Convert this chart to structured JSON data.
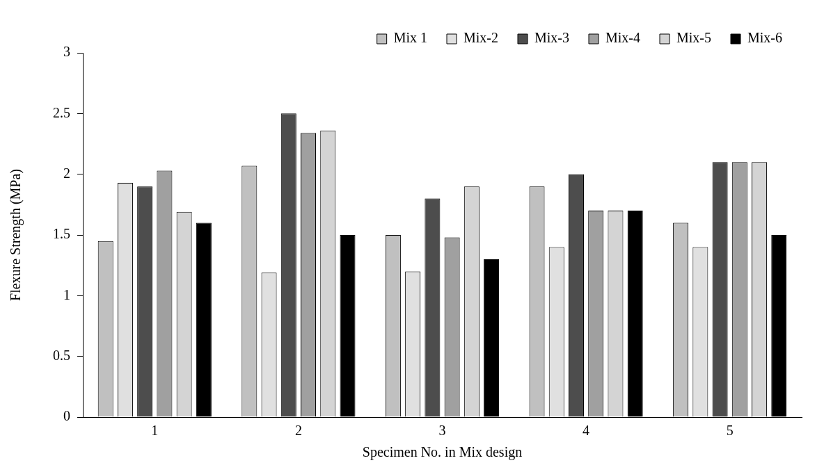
{
  "chart_data": {
    "type": "bar",
    "xlabel": "Specimen No. in Mix design",
    "ylabel": "Flexure Strength (MPa)",
    "categories": [
      "1",
      "2",
      "3",
      "4",
      "5"
    ],
    "series": [
      {
        "name": "Mix 1",
        "color": "#c0c0c0",
        "values": [
          1.45,
          2.07,
          1.5,
          1.9,
          1.6
        ]
      },
      {
        "name": "Mix-2",
        "color": "#e0e0e0",
        "values": [
          1.93,
          1.19,
          1.2,
          1.4,
          1.4
        ]
      },
      {
        "name": "Mix-3",
        "color": "#4d4d4d",
        "values": [
          1.9,
          2.5,
          1.8,
          2.0,
          2.1
        ]
      },
      {
        "name": "Mix-4",
        "color": "#a0a0a0",
        "values": [
          2.03,
          2.34,
          1.48,
          1.7,
          2.1
        ]
      },
      {
        "name": "Mix-5",
        "color": "#d4d4d4",
        "values": [
          1.69,
          2.36,
          1.9,
          1.7,
          2.1
        ]
      },
      {
        "name": "Mix-6",
        "color": "#000000",
        "values": [
          1.6,
          1.5,
          1.3,
          1.7,
          1.5
        ]
      }
    ],
    "ylim": [
      0,
      3
    ],
    "yticks": [
      0,
      0.5,
      1,
      1.5,
      2,
      2.5,
      3
    ],
    "grid": false,
    "legend": "top right"
  }
}
